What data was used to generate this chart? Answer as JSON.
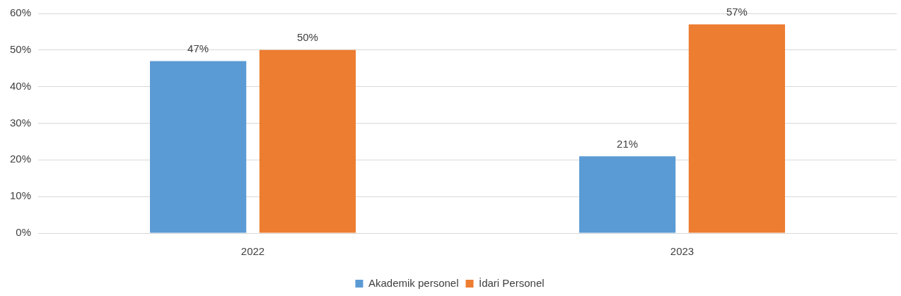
{
  "chart_data": {
    "type": "bar",
    "categories": [
      "2022",
      "2023"
    ],
    "series": [
      {
        "name": "Akademik personel",
        "color": "#5b9bd5",
        "values": [
          47,
          21
        ],
        "value_labels": [
          "47%",
          "21%"
        ]
      },
      {
        "name": "İdari Personel",
        "color": "#ed7d31",
        "values": [
          50,
          57
        ],
        "value_labels": [
          "50%",
          "57%"
        ]
      }
    ],
    "ylim": [
      0,
      60
    ],
    "yticks": [
      {
        "value": 0,
        "label": "0%"
      },
      {
        "value": 10,
        "label": "10%"
      },
      {
        "value": 20,
        "label": "20%"
      },
      {
        "value": 30,
        "label": "30%"
      },
      {
        "value": 40,
        "label": "40%"
      },
      {
        "value": 50,
        "label": "50%"
      },
      {
        "value": 60,
        "label": "60%"
      }
    ],
    "grid": "y",
    "legend": "bottom"
  }
}
